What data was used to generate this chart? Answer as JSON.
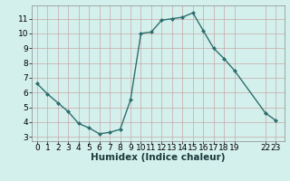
{
  "x": [
    0,
    1,
    2,
    3,
    4,
    5,
    6,
    7,
    8,
    9,
    10,
    11,
    12,
    13,
    14,
    15,
    16,
    17,
    18,
    19,
    22,
    23
  ],
  "y": [
    6.6,
    5.9,
    5.3,
    4.7,
    3.9,
    3.6,
    3.2,
    3.3,
    3.5,
    5.5,
    10.0,
    10.1,
    10.9,
    11.0,
    11.1,
    11.4,
    10.2,
    9.0,
    8.3,
    7.5,
    4.6,
    4.1
  ],
  "line_color": "#2d6e6e",
  "marker": "D",
  "marker_size": 2.0,
  "bg_color": "#d4f0ec",
  "grid_major_color": "#c8a8a8",
  "grid_minor_color": "#dcc8c8",
  "xlabel": "Humidex (Indice chaleur)",
  "xlabel_fontsize": 7.5,
  "yticks": [
    3,
    4,
    5,
    6,
    7,
    8,
    9,
    10,
    11
  ],
  "ylim": [
    2.7,
    11.9
  ],
  "xlim": [
    -0.5,
    23.8
  ],
  "tick_fontsize": 6.5,
  "linewidth": 1.0
}
